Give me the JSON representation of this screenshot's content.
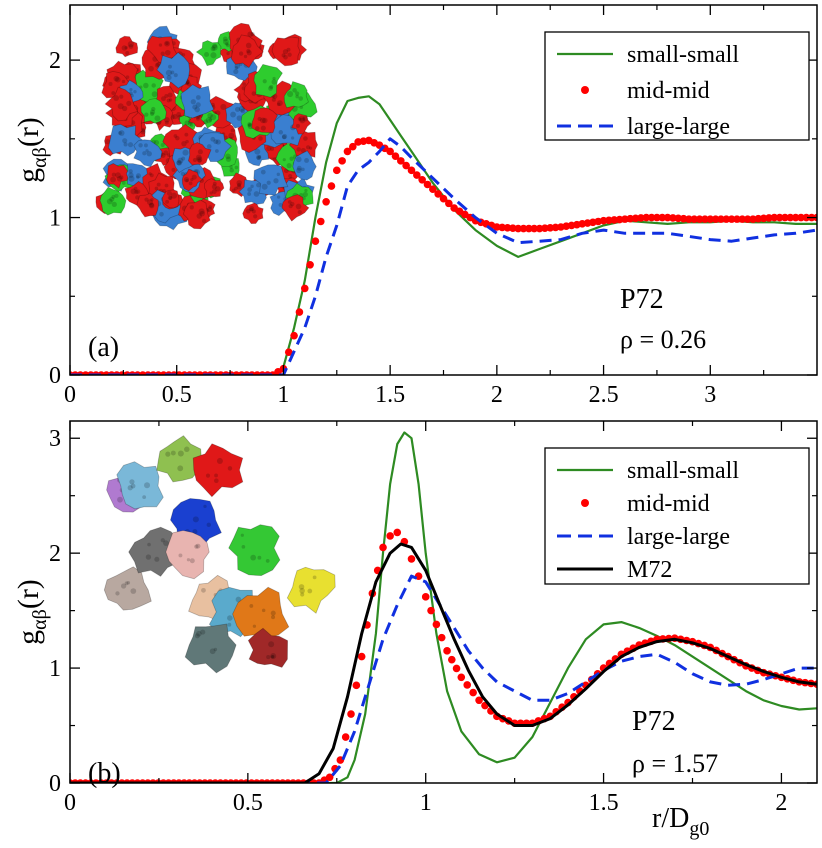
{
  "chart_data": [
    {
      "panel": "a",
      "type": "line",
      "panel_label": "(a)",
      "annotation_system": "P72",
      "annotation_density": "ρ = 0.26",
      "xlabel": "",
      "ylabel_main": "g",
      "ylabel_sub": "αβ",
      "ylabel_tail": "(r)",
      "xlim": [
        0,
        3.5
      ],
      "ylim": [
        0,
        2.35
      ],
      "xticks": [
        0,
        0.5,
        1,
        1.5,
        2,
        2.5,
        3
      ],
      "xtick_labels": [
        "0",
        "0.5",
        "1",
        "1.5",
        "2",
        "2.5",
        "3"
      ],
      "yticks": [
        0,
        1,
        2
      ],
      "ytick_labels": [
        "0",
        "1",
        "2"
      ],
      "legend_position": "top-right",
      "series": [
        {
          "name": "small-small",
          "style": "solid",
          "color": "#2e8b22",
          "x": [
            0,
            0.95,
            1.0,
            1.05,
            1.1,
            1.15,
            1.2,
            1.25,
            1.3,
            1.35,
            1.4,
            1.45,
            1.5,
            1.55,
            1.6,
            1.7,
            1.8,
            1.9,
            2.0,
            2.1,
            2.2,
            2.3,
            2.4,
            2.5,
            2.6,
            2.7,
            2.8,
            2.9,
            3.0,
            3.1,
            3.2,
            3.3,
            3.4,
            3.5
          ],
          "y": [
            0,
            0,
            0.05,
            0.3,
            0.6,
            1.0,
            1.35,
            1.6,
            1.74,
            1.76,
            1.77,
            1.72,
            1.62,
            1.52,
            1.42,
            1.22,
            1.05,
            0.92,
            0.82,
            0.75,
            0.8,
            0.85,
            0.9,
            0.95,
            0.98,
            0.97,
            0.96,
            0.97,
            0.97,
            0.98,
            0.97,
            0.97,
            0.96,
            0.96
          ]
        },
        {
          "name": "mid-mid",
          "style": "dots",
          "color": "#ff0000",
          "x": [
            0,
            0.95,
            1.0,
            1.05,
            1.1,
            1.15,
            1.2,
            1.25,
            1.3,
            1.35,
            1.4,
            1.45,
            1.5,
            1.55,
            1.6,
            1.7,
            1.8,
            1.9,
            2.0,
            2.1,
            2.2,
            2.3,
            2.4,
            2.5,
            2.6,
            2.7,
            2.8,
            2.9,
            3.0,
            3.1,
            3.2,
            3.3,
            3.4,
            3.5
          ],
          "y": [
            0,
            0,
            0.04,
            0.25,
            0.55,
            0.85,
            1.1,
            1.3,
            1.42,
            1.48,
            1.49,
            1.46,
            1.42,
            1.36,
            1.3,
            1.18,
            1.06,
            0.98,
            0.94,
            0.93,
            0.93,
            0.94,
            0.96,
            0.98,
            0.99,
            1.0,
            1.0,
            0.99,
            0.99,
            0.99,
            0.99,
            1.0,
            1.0,
            1.0
          ]
        },
        {
          "name": "large-large",
          "style": "dashed",
          "color": "#1030e0",
          "x": [
            0,
            1.0,
            1.05,
            1.1,
            1.15,
            1.2,
            1.25,
            1.3,
            1.35,
            1.4,
            1.45,
            1.5,
            1.55,
            1.6,
            1.7,
            1.8,
            1.9,
            2.0,
            2.1,
            2.2,
            2.3,
            2.4,
            2.5,
            2.6,
            2.7,
            2.8,
            2.9,
            3.0,
            3.1,
            3.2,
            3.3,
            3.4,
            3.5
          ],
          "y": [
            0,
            0,
            0.15,
            0.3,
            0.5,
            0.75,
            0.95,
            1.2,
            1.3,
            1.35,
            1.42,
            1.5,
            1.45,
            1.38,
            1.25,
            1.12,
            1.0,
            0.9,
            0.84,
            0.85,
            0.86,
            0.9,
            0.92,
            0.9,
            0.9,
            0.9,
            0.88,
            0.86,
            0.85,
            0.87,
            0.89,
            0.9,
            0.92
          ]
        }
      ]
    },
    {
      "panel": "b",
      "type": "line",
      "panel_label": "(b)",
      "annotation_system": "P72",
      "annotation_density": "ρ = 1.57",
      "xlabel_main": "r/D",
      "xlabel_sub": "g0",
      "ylabel_main": "g",
      "ylabel_sub": "αβ",
      "ylabel_tail": "(r)",
      "xlim": [
        0,
        2.1
      ],
      "ylim": [
        0,
        3.15
      ],
      "xticks": [
        0,
        0.5,
        1,
        1.5,
        2
      ],
      "xtick_labels": [
        "0",
        "0.5",
        "1",
        "1.5",
        "2"
      ],
      "yticks": [
        0,
        1,
        2,
        3
      ],
      "ytick_labels": [
        "0",
        "1",
        "2",
        "3"
      ],
      "legend_position": "top-right",
      "series": [
        {
          "name": "small-small",
          "style": "solid",
          "color": "#2e8b22",
          "x": [
            0,
            0.75,
            0.78,
            0.8,
            0.83,
            0.86,
            0.88,
            0.9,
            0.92,
            0.94,
            0.96,
            0.98,
            1.0,
            1.03,
            1.06,
            1.1,
            1.15,
            1.2,
            1.25,
            1.3,
            1.35,
            1.4,
            1.45,
            1.5,
            1.55,
            1.6,
            1.65,
            1.7,
            1.75,
            1.8,
            1.85,
            1.9,
            1.95,
            2.0,
            2.05,
            2.1
          ],
          "y": [
            0,
            0,
            0.05,
            0.2,
            0.6,
            1.3,
            2.0,
            2.6,
            2.95,
            3.05,
            3.0,
            2.6,
            2.0,
            1.3,
            0.8,
            0.45,
            0.25,
            0.18,
            0.22,
            0.4,
            0.7,
            1.0,
            1.25,
            1.38,
            1.4,
            1.35,
            1.28,
            1.2,
            1.1,
            1.0,
            0.9,
            0.8,
            0.72,
            0.67,
            0.64,
            0.65
          ]
        },
        {
          "name": "mid-mid",
          "style": "dots",
          "color": "#ff0000",
          "x": [
            0,
            0.7,
            0.73,
            0.76,
            0.79,
            0.82,
            0.85,
            0.88,
            0.9,
            0.92,
            0.94,
            0.96,
            0.98,
            1.0,
            1.03,
            1.06,
            1.1,
            1.15,
            1.2,
            1.25,
            1.3,
            1.35,
            1.4,
            1.45,
            1.5,
            1.55,
            1.6,
            1.65,
            1.7,
            1.75,
            1.8,
            1.85,
            1.9,
            1.95,
            2.0,
            2.05,
            2.1
          ],
          "y": [
            0,
            0,
            0.05,
            0.2,
            0.6,
            1.1,
            1.65,
            2.05,
            2.15,
            2.18,
            2.1,
            1.95,
            1.8,
            1.62,
            1.38,
            1.15,
            0.92,
            0.72,
            0.58,
            0.52,
            0.52,
            0.58,
            0.7,
            0.85,
            1.0,
            1.12,
            1.2,
            1.25,
            1.26,
            1.23,
            1.18,
            1.1,
            1.02,
            0.96,
            0.92,
            0.88,
            0.86
          ]
        },
        {
          "name": "large-large",
          "style": "dashed",
          "color": "#1030e0",
          "x": [
            0,
            0.72,
            0.76,
            0.8,
            0.84,
            0.88,
            0.92,
            0.96,
            1.0,
            1.04,
            1.08,
            1.12,
            1.16,
            1.2,
            1.25,
            1.3,
            1.35,
            1.4,
            1.45,
            1.5,
            1.55,
            1.6,
            1.65,
            1.7,
            1.75,
            1.8,
            1.85,
            1.9,
            1.95,
            2.0,
            2.05,
            2.1
          ],
          "y": [
            0,
            0,
            0.15,
            0.45,
            0.85,
            1.25,
            1.55,
            1.8,
            1.75,
            1.55,
            1.35,
            1.15,
            1.0,
            0.88,
            0.8,
            0.72,
            0.72,
            0.78,
            0.88,
            0.98,
            1.06,
            1.1,
            1.12,
            1.05,
            0.95,
            0.88,
            0.85,
            0.86,
            0.9,
            0.95,
            1.0,
            1.0
          ]
        },
        {
          "name": "M72",
          "style": "solid-thick",
          "color": "#000000",
          "x": [
            0,
            0.66,
            0.7,
            0.74,
            0.78,
            0.82,
            0.86,
            0.9,
            0.93,
            0.96,
            1.0,
            1.04,
            1.08,
            1.12,
            1.16,
            1.2,
            1.25,
            1.3,
            1.35,
            1.4,
            1.45,
            1.5,
            1.55,
            1.6,
            1.65,
            1.7,
            1.75,
            1.8,
            1.85,
            1.9,
            1.95,
            2.0,
            2.05,
            2.1
          ],
          "y": [
            0,
            0,
            0.08,
            0.3,
            0.75,
            1.3,
            1.75,
            2.0,
            2.08,
            2.05,
            1.85,
            1.55,
            1.25,
            0.98,
            0.75,
            0.6,
            0.5,
            0.5,
            0.56,
            0.68,
            0.82,
            0.97,
            1.1,
            1.18,
            1.23,
            1.25,
            1.22,
            1.17,
            1.1,
            1.03,
            0.97,
            0.92,
            0.88,
            0.86
          ]
        }
      ]
    }
  ]
}
